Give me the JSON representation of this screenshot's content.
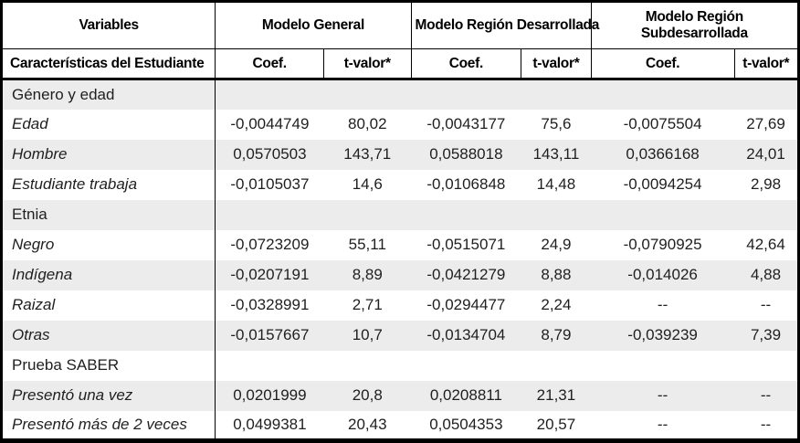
{
  "colors": {
    "row_shade": "#ececec",
    "border": "#000000",
    "text": "#1f1f1f",
    "background": "#ffffff"
  },
  "table": {
    "header": {
      "variables_label": "Variables",
      "subheader_label": "Características del Estudiante",
      "groups": [
        {
          "label": "Modelo General"
        },
        {
          "label": "Modelo Región Desarrollada"
        },
        {
          "label": "Modelo Región Subdesarrollada"
        }
      ],
      "coef_label": "Coef.",
      "tvalue_label": "t-valor*"
    },
    "rows": [
      {
        "type": "section",
        "label": "Género y edad",
        "values": [
          "",
          "",
          "",
          "",
          "",
          ""
        ]
      },
      {
        "type": "variable",
        "label": "Edad",
        "values": [
          "-0,0044749",
          "80,02",
          "-0,0043177",
          "75,6",
          "-0,0075504",
          "27,69"
        ]
      },
      {
        "type": "variable",
        "label": "Hombre",
        "values": [
          "0,0570503",
          "143,71",
          "0,0588018",
          "143,11",
          "0,0366168",
          "24,01"
        ]
      },
      {
        "type": "variable",
        "label": "Estudiante trabaja",
        "values": [
          "-0,0105037",
          "14,6",
          "-0,0106848",
          "14,48",
          "-0,0094254",
          "2,98"
        ]
      },
      {
        "type": "section",
        "label": "Etnia",
        "values": [
          "",
          "",
          "",
          "",
          "",
          ""
        ]
      },
      {
        "type": "variable",
        "label": "Negro",
        "values": [
          "-0,0723209",
          "55,11",
          "-0,0515071",
          "24,9",
          "-0,0790925",
          "42,64"
        ]
      },
      {
        "type": "variable",
        "label": "Indígena",
        "values": [
          "-0,0207191",
          "8,89",
          "-0,0421279",
          "8,88",
          "-0,014026",
          "4,88"
        ]
      },
      {
        "type": "variable",
        "label": "Raizal",
        "values": [
          "-0,0328991",
          "2,71",
          "-0,0294477",
          "2,24",
          "--",
          "--"
        ]
      },
      {
        "type": "variable",
        "label": "Otras",
        "values": [
          "-0,0157667",
          "10,7",
          "-0,0134704",
          "8,79",
          "-0,039239",
          "7,39"
        ]
      },
      {
        "type": "section",
        "label": "Prueba SABER",
        "values": [
          "",
          "",
          "",
          "",
          "",
          ""
        ]
      },
      {
        "type": "variable",
        "label": "Presentó una vez",
        "values": [
          "0,0201999",
          "20,8",
          "0,0208811",
          "21,31",
          "--",
          "--"
        ]
      },
      {
        "type": "variable",
        "label": "Presentó más de 2 veces",
        "values": [
          "0,0499381",
          "20,43",
          "0,0504353",
          "20,57",
          "--",
          "--"
        ]
      }
    ]
  }
}
